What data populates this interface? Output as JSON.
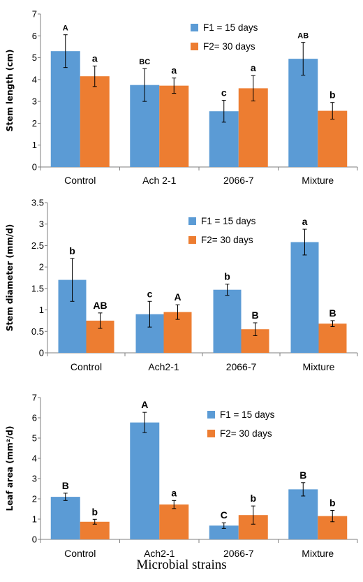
{
  "colors": {
    "f1": "#5b9bd5",
    "f2": "#ed7d31",
    "axis": "#7f7f7f",
    "error": "#000000"
  },
  "x_title": "Microbial strains",
  "chart_data": [
    {
      "type": "bar",
      "ylabel": "Stem length (cm)",
      "ylim": [
        0,
        7
      ],
      "yticks": [
        "0",
        "1",
        "2",
        "3",
        "4",
        "5",
        "6",
        "7"
      ],
      "categories": [
        "Control",
        "Ach 2-1",
        "2066-7",
        "Mixture"
      ],
      "legend_position": "top-center",
      "series": [
        {
          "name": "F1 = 15 days",
          "values": [
            5.3,
            3.75,
            2.55,
            4.95
          ],
          "errors": [
            0.75,
            0.75,
            0.5,
            0.75
          ],
          "letters": [
            "A",
            "BC",
            "c",
            "AB"
          ]
        },
        {
          "name": "F2=  30 days",
          "values": [
            4.15,
            3.72,
            3.6,
            2.57
          ],
          "errors": [
            0.47,
            0.35,
            0.58,
            0.38
          ],
          "letters": [
            "a",
            "a",
            "a",
            "b"
          ]
        }
      ]
    },
    {
      "type": "bar",
      "ylabel": "Stem diameter (mm/d)",
      "ylim": [
        0,
        3.5
      ],
      "yticks": [
        "0",
        "0.5",
        "1",
        "1.5",
        "2",
        "2.5",
        "3",
        "3.5"
      ],
      "categories": [
        "Control",
        "Ach2-1",
        "2066-7",
        "Mixture"
      ],
      "legend_position": "top-right",
      "series": [
        {
          "name": "F1 = 15 days",
          "values": [
            1.7,
            0.9,
            1.47,
            2.58
          ],
          "errors": [
            0.5,
            0.3,
            0.13,
            0.3
          ],
          "letters": [
            "b",
            "c",
            "b",
            "a"
          ]
        },
        {
          "name": "F2=  30 days",
          "values": [
            0.75,
            0.95,
            0.55,
            0.68
          ],
          "errors": [
            0.18,
            0.17,
            0.15,
            0.07
          ],
          "letters": [
            "AB",
            "A",
            "B",
            "B"
          ]
        }
      ]
    },
    {
      "type": "bar",
      "ylabel": "Leaf area (mm²/d)",
      "ylim": [
        0,
        7
      ],
      "yticks": [
        "0",
        "1",
        "2",
        "3",
        "4",
        "5",
        "6",
        "7"
      ],
      "categories": [
        "Control",
        "Ach2-1",
        "2066-7",
        "Mixture"
      ],
      "legend_position": "top-right",
      "series": [
        {
          "name": "F1 = 15 days",
          "values": [
            2.1,
            5.77,
            0.68,
            2.47
          ],
          "errors": [
            0.18,
            0.5,
            0.14,
            0.33
          ],
          "letters": [
            "B",
            "A",
            "C",
            "B"
          ]
        },
        {
          "name": "F2=  30 days",
          "values": [
            0.87,
            1.72,
            1.2,
            1.15
          ],
          "errors": [
            0.12,
            0.2,
            0.45,
            0.28
          ],
          "letters": [
            "b",
            "a",
            "b",
            "b"
          ]
        }
      ]
    }
  ]
}
